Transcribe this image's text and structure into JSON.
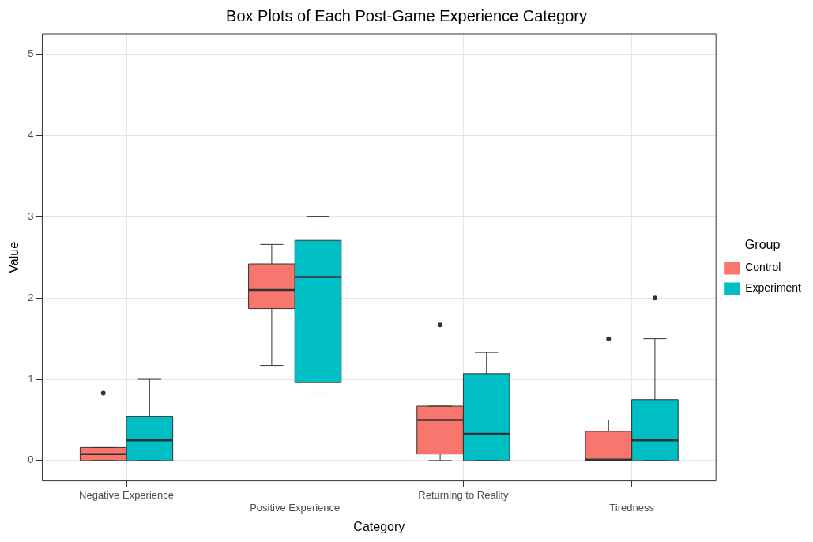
{
  "chart_data": {
    "type": "box",
    "title": "Box Plots of Each Post-Game Experience Category",
    "xlabel": "Category",
    "ylabel": "Value",
    "legend_title": "Group",
    "categories": [
      "Negative Experience",
      "Positive Experience",
      "Returning to Reality",
      "Tiredness"
    ],
    "series": [
      {
        "name": "Control",
        "color": "#f8766d",
        "boxes": [
          {
            "low": 0,
            "q1": 0,
            "median": 0.08,
            "q3": 0.16,
            "high": 0.16,
            "outliers": [
              0.83
            ]
          },
          {
            "low": 1.17,
            "q1": 1.87,
            "median": 2.1,
            "q3": 2.42,
            "high": 2.66
          },
          {
            "low": 0,
            "q1": 0.08,
            "median": 0.5,
            "q3": 0.67,
            "high": 0.67,
            "outliers": [
              1.67
            ]
          },
          {
            "low": 0,
            "q1": 0,
            "median": 0.01,
            "q3": 0.36,
            "high": 0.5,
            "outliers": [
              1.5
            ]
          }
        ]
      },
      {
        "name": "Experiment",
        "color": "#00bfc4",
        "boxes": [
          {
            "low": 0,
            "q1": 0,
            "median": 0.25,
            "q3": 0.54,
            "high": 1
          },
          {
            "low": 0.83,
            "q1": 0.96,
            "median": 2.26,
            "q3": 2.71,
            "high": 3
          },
          {
            "low": 0,
            "q1": 0,
            "median": 0.33,
            "q3": 1.07,
            "high": 1.33
          },
          {
            "low": 0,
            "q1": 0,
            "median": 0.25,
            "q3": 0.75,
            "high": 1.5,
            "outliers": [
              2
            ]
          }
        ]
      }
    ],
    "ylim": [
      -0.25,
      5.25
    ],
    "yticks": [
      0,
      1,
      2,
      3,
      4,
      5
    ],
    "grid": true,
    "legend": "right"
  }
}
